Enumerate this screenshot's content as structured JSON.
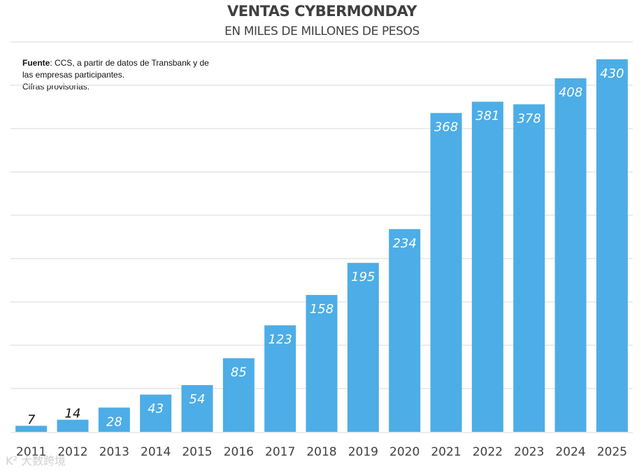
{
  "chart_data": {
    "type": "bar",
    "title": "VENTAS CYBERMONDAY",
    "subtitle": "EN MILES DE MILLONES DE PESOS",
    "categories": [
      "2011",
      "2012",
      "2013",
      "2014",
      "2015",
      "2016",
      "2017",
      "2018",
      "2019",
      "2020",
      "2021",
      "2022",
      "2023",
      "2024",
      "2025"
    ],
    "values": [
      7,
      14,
      28,
      43,
      54,
      85,
      123,
      158,
      195,
      234,
      368,
      381,
      378,
      408,
      430
    ],
    "ylim": [
      0,
      450
    ],
    "grid": true,
    "bar_color": "#4dade6",
    "label_color_inside": "#ffffff",
    "label_color_outside": "#111111"
  },
  "source": {
    "label": "Fuente",
    "text": ": CCS, a partir de datos de Transbank y de las empresas participantes.",
    "note": "Cifras provisorias."
  },
  "watermark": "K² 大数跨境"
}
